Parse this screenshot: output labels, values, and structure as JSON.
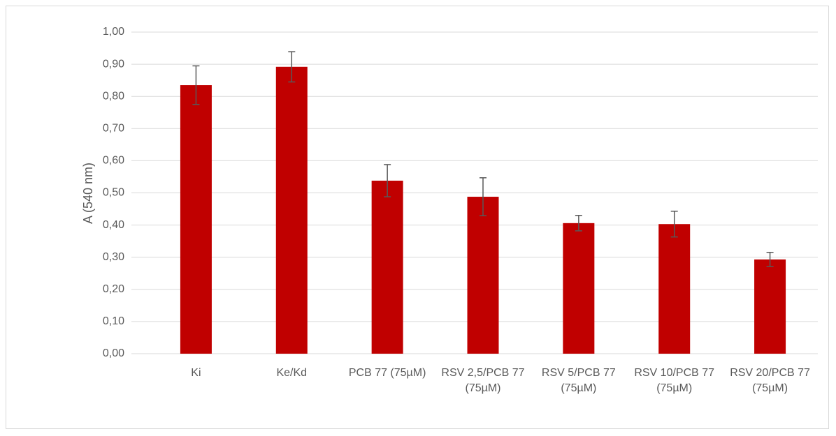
{
  "chart_data": {
    "type": "bar",
    "y_label": "A (540 nm)",
    "categories": [
      "Ki",
      "Ke/Kd",
      "PCB 77 (75µM)",
      "RSV 2,5/PCB 77 (75µM)",
      "RSV 5/PCB 77 (75µM)",
      "RSV 10/PCB 77 (75µM)",
      "RSV 20/PCB 77 (75µM)"
    ],
    "values": [
      0.835,
      0.892,
      0.538,
      0.488,
      0.406,
      0.403,
      0.293
    ],
    "errors": [
      0.06,
      0.047,
      0.05,
      0.059,
      0.024,
      0.04,
      0.022
    ],
    "color": "#c00000",
    "error_color": "#595959",
    "ylim": [
      0,
      1
    ],
    "yticks": [
      {
        "value": 0,
        "label": "0,00"
      },
      {
        "value": 0.1,
        "label": "0,10"
      },
      {
        "value": 0.2,
        "label": "0,20"
      },
      {
        "value": 0.3,
        "label": "0,30"
      },
      {
        "value": 0.4,
        "label": "0,40"
      },
      {
        "value": 0.5,
        "label": "0,50"
      },
      {
        "value": 0.6,
        "label": "0,60"
      },
      {
        "value": 0.7,
        "label": "0,70"
      },
      {
        "value": 0.8,
        "label": "0,80"
      },
      {
        "value": 0.9,
        "label": "0,90"
      },
      {
        "value": 1,
        "label": "1,00"
      }
    ],
    "grid": true
  }
}
